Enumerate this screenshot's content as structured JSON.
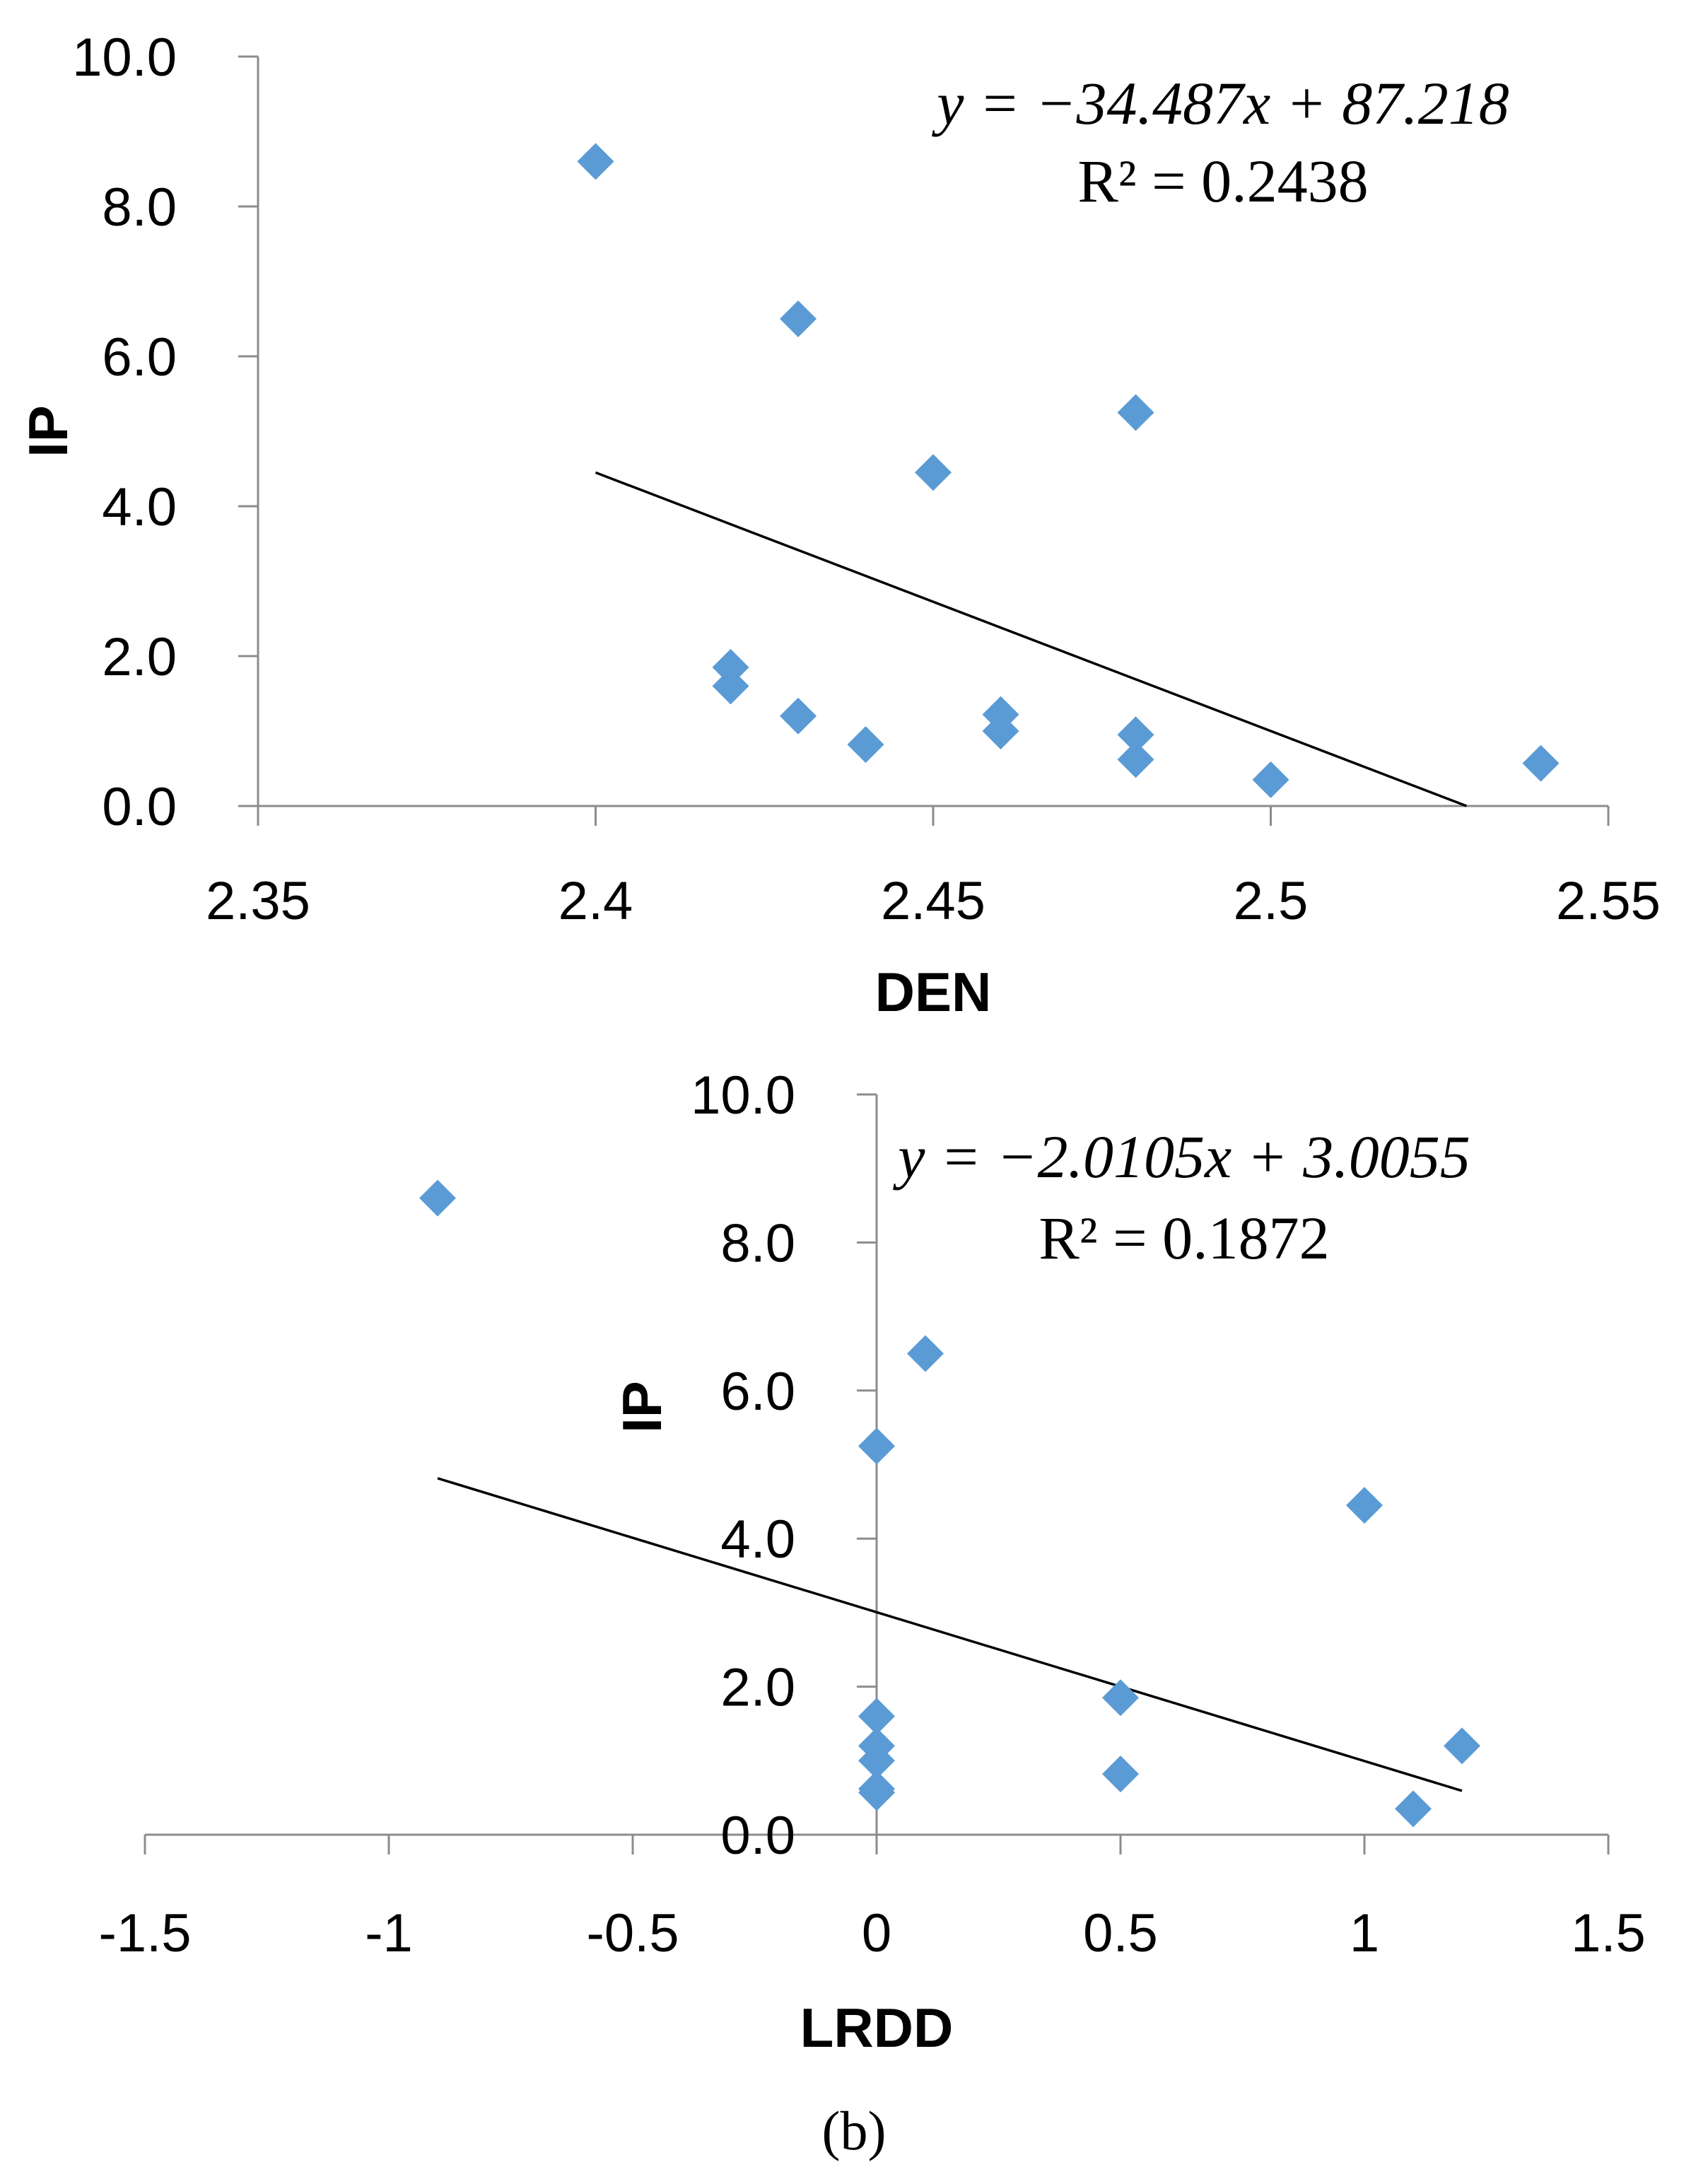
{
  "chart_data": [
    {
      "id": "a",
      "type": "scatter",
      "xlabel": "DEN",
      "ylabel": "IP",
      "xlim": [
        2.35,
        2.55
      ],
      "ylim": [
        0,
        10
      ],
      "xticks": [
        "2.35",
        "2.4",
        "2.45",
        "2.5",
        "2.55"
      ],
      "yticks": [
        "0.0",
        "2.0",
        "4.0",
        "6.0",
        "8.0",
        "10.0"
      ],
      "series": [
        {
          "name": "IP",
          "color": "#5b9bd5",
          "points": [
            {
              "x": 2.4,
              "y": 8.6
            },
            {
              "x": 2.43,
              "y": 6.5
            },
            {
              "x": 2.48,
              "y": 5.25
            },
            {
              "x": 2.45,
              "y": 4.45
            },
            {
              "x": 2.42,
              "y": 1.85
            },
            {
              "x": 2.42,
              "y": 1.6
            },
            {
              "x": 2.43,
              "y": 1.2
            },
            {
              "x": 2.44,
              "y": 0.82
            },
            {
              "x": 2.46,
              "y": 1.22
            },
            {
              "x": 2.46,
              "y": 1.0
            },
            {
              "x": 2.48,
              "y": 0.95
            },
            {
              "x": 2.48,
              "y": 0.62
            },
            {
              "x": 2.5,
              "y": 0.35
            },
            {
              "x": 2.54,
              "y": 0.57
            }
          ]
        }
      ],
      "trendline": {
        "slope": -34.487,
        "intercept": 87.218,
        "x_start": 2.4,
        "x_end": 2.529
      },
      "equation": "y = −34.487x + 87.218",
      "r_squared": "R² = 0.2438"
    },
    {
      "id": "b",
      "type": "scatter",
      "xlabel": "LRDD",
      "ylabel": "IP",
      "xlim": [
        -1.5,
        1.5
      ],
      "ylim": [
        0,
        10
      ],
      "xticks": [
        "-1.5",
        "-1",
        "-0.5",
        "0",
        "0.5",
        "1",
        "1.5"
      ],
      "yticks": [
        "0.0",
        "2.0",
        "4.0",
        "6.0",
        "8.0",
        "10.0"
      ],
      "series": [
        {
          "name": "IP",
          "color": "#5b9bd5",
          "points": [
            {
              "x": -0.9,
              "y": 8.6
            },
            {
              "x": 0.1,
              "y": 6.5
            },
            {
              "x": 0.0,
              "y": 5.25
            },
            {
              "x": 1.0,
              "y": 4.45
            },
            {
              "x": 0.5,
              "y": 1.85
            },
            {
              "x": 0.5,
              "y": 0.82
            },
            {
              "x": 1.2,
              "y": 1.2
            },
            {
              "x": 1.1,
              "y": 0.35
            },
            {
              "x": 0.0,
              "y": 1.6
            },
            {
              "x": 0.0,
              "y": 1.2
            },
            {
              "x": 0.0,
              "y": 1.0
            },
            {
              "x": 0.0,
              "y": 0.62
            },
            {
              "x": 0.0,
              "y": 0.57
            }
          ]
        }
      ],
      "trendline": {
        "slope": -2.0105,
        "intercept": 3.0055,
        "x_start": -0.9,
        "x_end": 1.2
      },
      "equation": "y = −2.0105x + 3.0055",
      "r_squared": "R² = 0.1872"
    }
  ],
  "caption": "(b)"
}
